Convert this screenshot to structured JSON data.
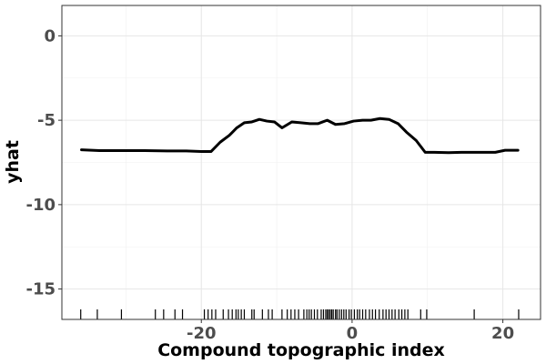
{
  "chart_data": {
    "type": "line",
    "xlabel": "Compound topographic index",
    "ylabel": "yhat",
    "xlim": [
      -38.5,
      25.0
    ],
    "ylim": [
      -16.8,
      1.8
    ],
    "x_ticks": [
      -20,
      0,
      20
    ],
    "x_tick_labels": [
      "-20",
      "0",
      "20"
    ],
    "y_ticks": [
      0,
      -5,
      -10,
      -15
    ],
    "y_tick_labels": [
      "0",
      "-5",
      "-10",
      "-15"
    ],
    "grid": true,
    "legend": "none",
    "series": [
      {
        "x": [
          -35.9,
          -33.5,
          -30.5,
          -27.5,
          -24.5,
          -22,
          -20,
          -18.7,
          -17.5,
          -16.3,
          -15.3,
          -14.3,
          -13.3,
          -12.3,
          -11.3,
          -10.3,
          -9.3,
          -8.0,
          -6.8,
          -5.6,
          -4.5,
          -3.3,
          -2.2,
          -1.0,
          0.2,
          1.4,
          2.5,
          3.7,
          4.9,
          6.1,
          7.2,
          8.5,
          9.7,
          10.9,
          12.8,
          14.5,
          16.5,
          19.0,
          20.3,
          22.0
        ],
        "y": [
          -6.75,
          -6.8,
          -6.8,
          -6.8,
          -6.82,
          -6.82,
          -6.85,
          -6.85,
          -6.3,
          -5.9,
          -5.45,
          -5.15,
          -5.1,
          -4.95,
          -5.05,
          -5.1,
          -5.45,
          -5.1,
          -5.15,
          -5.2,
          -5.2,
          -5.0,
          -5.25,
          -5.2,
          -5.05,
          -5.0,
          -5.0,
          -4.9,
          -4.95,
          -5.2,
          -5.7,
          -6.2,
          -6.9,
          -6.9,
          -6.92,
          -6.9,
          -6.9,
          -6.9,
          -6.78,
          -6.78
        ]
      }
    ],
    "rug_x": [
      -36,
      -33.8,
      -30.6,
      -26.1,
      -25.0,
      -23.5,
      -22.5,
      -19.6,
      -19.1,
      -18.6,
      -18.1,
      -17.1,
      -16.4,
      -15.9,
      -15.4,
      -15.1,
      -14.7,
      -14.3,
      -13.3,
      -13.0,
      -11.9,
      -11.1,
      -10.6,
      -9.3,
      -8.6,
      -8.1,
      -7.6,
      -7.1,
      -6.4,
      -6.0,
      -5.7,
      -5.4,
      -5.0,
      -4.6,
      -4.1,
      -3.8,
      -3.5,
      -3.3,
      -3.1,
      -2.9,
      -2.7,
      -2.5,
      -2.2,
      -2.0,
      -1.7,
      -1.4,
      -1.1,
      -0.8,
      -0.4,
      -0.1,
      0.3,
      0.7,
      1.0,
      1.4,
      1.8,
      2.3,
      2.7,
      3.1,
      3.6,
      4.1,
      4.5,
      4.9,
      5.3,
      5.7,
      6.2,
      6.6,
      7.0,
      7.4,
      9.1,
      9.9,
      16.2,
      22.1
    ]
  }
}
